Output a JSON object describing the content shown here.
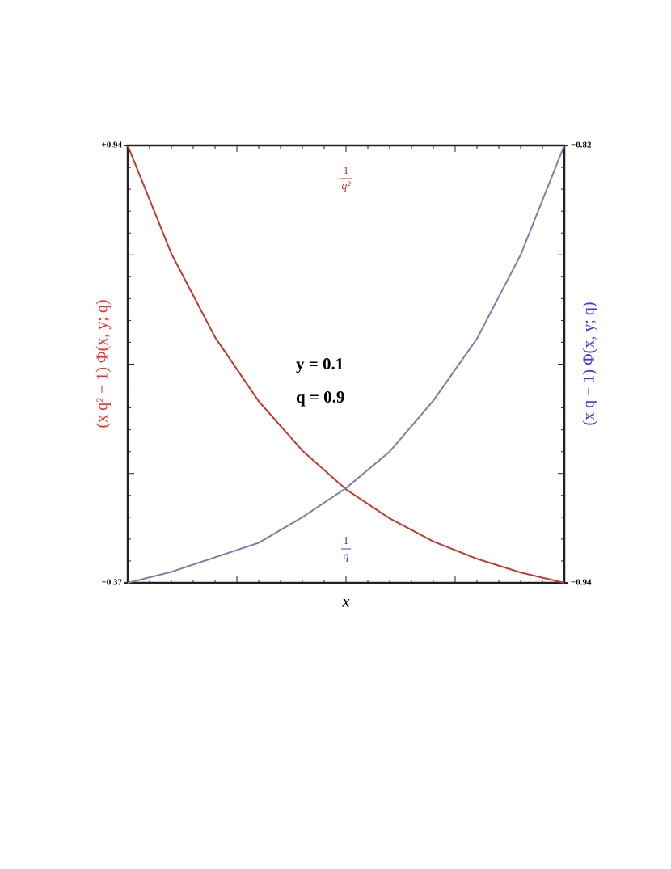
{
  "chart_data": {
    "type": "line",
    "x_label": "x",
    "y_label": "(x q² − 1) Φ(x, y; q)",
    "y2_label": "(x q − 1) Φ(x, y; q)",
    "categories": [
      null,
      null,
      null,
      null,
      null,
      null,
      null,
      null,
      null,
      null,
      null
    ],
    "series": [
      {
        "name": "(x q² − 1) Φ(x, y; q)",
        "color": "#c0392b",
        "values": [
          0.94,
          0.616,
          0.366,
          0.174,
          0.026,
          -0.09,
          -0.177,
          -0.246,
          -0.298,
          -0.339,
          -0.37
        ]
      },
      {
        "name": "(x q − 1) Φ(x, y; q)",
        "color": "#7b7fa8",
        "axis": "y2",
        "values": [
          -0.94,
          -0.937,
          -0.933,
          -0.929,
          -0.922,
          -0.914,
          -0.904,
          -0.89,
          -0.873,
          -0.85,
          -0.82
        ]
      }
    ],
    "ylim": [
      -0.37,
      0.94
    ],
    "yticks": [
      {
        "value": -0.37,
        "label": "−0.37"
      },
      {
        "value": 0.94,
        "label": "+0.94"
      }
    ],
    "y2lim": [
      -0.94,
      -0.82
    ],
    "y2ticks": [
      {
        "value": -0.94,
        "label": "−0.94"
      },
      {
        "value": -0.82,
        "label": "−0.82"
      }
    ],
    "annotations": {
      "top_fraction": {
        "numerator": "1",
        "denominator": "q²"
      },
      "bottom_fraction": {
        "numerator": "1",
        "denominator": "q"
      },
      "parameters": [
        "y = 0.1",
        "q = 0.9"
      ]
    }
  }
}
